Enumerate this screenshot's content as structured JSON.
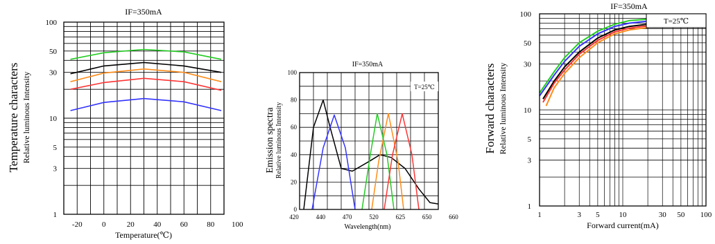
{
  "chart_data": [
    {
      "type": "line",
      "title": "IF=350mA",
      "ylabel_main": "Temperature characters",
      "ylabel_sub": "Relative luminous Intensity",
      "xlabel": "Temperature(℃)",
      "xlim": [
        -30,
        90
      ],
      "ylim": [
        1,
        100
      ],
      "yscale": "log",
      "xticks": [
        "-20",
        "0",
        "20",
        "40",
        "60",
        "80",
        "100"
      ],
      "xtick_values": [
        -20,
        0,
        20,
        40,
        60,
        80,
        100
      ],
      "yticks": [
        "1",
        "3",
        "5",
        "10",
        "30",
        "50",
        "100"
      ],
      "ytick_values": [
        1,
        3,
        5,
        10,
        30,
        50,
        100
      ],
      "grid": true,
      "series": [
        {
          "color": "#22cc22",
          "x": [
            -25,
            0,
            30,
            60,
            88
          ],
          "y": [
            41,
            48,
            52,
            49,
            41
          ]
        },
        {
          "color": "#000000",
          "x": [
            -25,
            0,
            30,
            60,
            88
          ],
          "y": [
            29,
            35,
            38,
            35,
            30
          ]
        },
        {
          "color": "#ff8c1a",
          "x": [
            -25,
            0,
            30,
            60,
            88
          ],
          "y": [
            24,
            29.5,
            32.5,
            30,
            24
          ]
        },
        {
          "color": "#ff3333",
          "x": [
            -25,
            0,
            30,
            60,
            88
          ],
          "y": [
            20,
            23.5,
            26,
            24,
            19.5
          ]
        },
        {
          "color": "#3333ff",
          "x": [
            -25,
            0,
            30,
            60,
            88
          ],
          "y": [
            12,
            14.6,
            16,
            14.8,
            12
          ]
        }
      ]
    },
    {
      "type": "line",
      "title": "IF=350mA",
      "ylabel_main": "Emission spectra",
      "ylabel_sub": "Relative luminous Intensity",
      "xlabel": "Wavelength(nm)",
      "annotation": "T=25℃",
      "xticks": [
        "420",
        "440",
        "470",
        "520",
        "625",
        "650",
        "660"
      ],
      "yticks": [
        "0",
        "20",
        "40",
        "60",
        "80",
        "100"
      ],
      "ytick_values": [
        0,
        20,
        40,
        60,
        80,
        100
      ],
      "ylim": [
        0,
        100
      ],
      "grid": true,
      "series": [
        {
          "color": "#000000",
          "points": [
            [
              0.03,
              0
            ],
            [
              0.1,
              60
            ],
            [
              0.17,
              80
            ],
            [
              0.22,
              60
            ],
            [
              0.3,
              30
            ],
            [
              0.38,
              28
            ],
            [
              0.5,
              35
            ],
            [
              0.58,
              40
            ],
            [
              0.66,
              38
            ],
            [
              0.76,
              30
            ],
            [
              0.86,
              15
            ],
            [
              0.94,
              5
            ],
            [
              1.0,
              4
            ]
          ]
        },
        {
          "color": "#3333ff",
          "points": [
            [
              0.09,
              0
            ],
            [
              0.17,
              45
            ],
            [
              0.25,
              69
            ],
            [
              0.33,
              45
            ],
            [
              0.4,
              0
            ]
          ]
        },
        {
          "color": "#ff8c1a",
          "points": [
            [
              0.52,
              0
            ],
            [
              0.57,
              35
            ],
            [
              0.64,
              70
            ],
            [
              0.71,
              35
            ],
            [
              0.75,
              0
            ]
          ]
        },
        {
          "color": "#22cc22",
          "points": [
            [
              0.45,
              0
            ],
            [
              0.51,
              40
            ],
            [
              0.56,
              70
            ],
            [
              0.63,
              40
            ],
            [
              0.68,
              0
            ]
          ]
        },
        {
          "color": "#ff3333",
          "points": [
            [
              0.61,
              0
            ],
            [
              0.67,
              40
            ],
            [
              0.74,
              70
            ],
            [
              0.81,
              40
            ],
            [
              0.86,
              0
            ]
          ]
        }
      ]
    },
    {
      "type": "line",
      "title": "IF=350mA",
      "ylabel_main": "Forward characters",
      "ylabel_sub": "Relative luminous Intensity",
      "xlabel": "Forward current(mA)",
      "annotation": "T=25℃",
      "xscale": "log",
      "yscale": "log",
      "xlim": [
        1,
        100
      ],
      "ylim": [
        1,
        100
      ],
      "xticks": [
        "1",
        "3",
        "5",
        "10",
        "30",
        "50",
        "100"
      ],
      "xtick_values": [
        1,
        3,
        5,
        10,
        30,
        50,
        100
      ],
      "yticks": [
        "1",
        "3",
        "5",
        "10",
        "30",
        "50",
        "100"
      ],
      "ytick_values": [
        1,
        3,
        5,
        10,
        30,
        50,
        100
      ],
      "grid": true,
      "series": [
        {
          "color": "#22cc22",
          "x": [
            1,
            1.5,
            2,
            3,
            5,
            8,
            12,
            20
          ],
          "y": [
            15,
            25,
            35,
            50,
            66,
            78,
            85,
            88
          ]
        },
        {
          "color": "#3333ff",
          "x": [
            1,
            1.5,
            2,
            3,
            5,
            8,
            12,
            20
          ],
          "y": [
            14,
            23,
            32,
            46,
            62,
            74,
            80,
            84
          ]
        },
        {
          "color": "#000000",
          "x": [
            1.1,
            1.5,
            2,
            3,
            5,
            8,
            12,
            20
          ],
          "y": [
            13,
            20,
            28,
            40,
            56,
            68,
            74,
            78
          ]
        },
        {
          "color": "#ff3333",
          "x": [
            1.1,
            1.5,
            2,
            3,
            5,
            8,
            12,
            20
          ],
          "y": [
            12,
            19,
            26,
            38,
            53,
            65,
            71,
            75
          ]
        },
        {
          "color": "#ff8c1a",
          "x": [
            1.2,
            1.5,
            2,
            3,
            5,
            8,
            12,
            20
          ],
          "y": [
            11,
            17,
            24,
            35,
            50,
            62,
            68,
            72
          ]
        }
      ]
    }
  ]
}
